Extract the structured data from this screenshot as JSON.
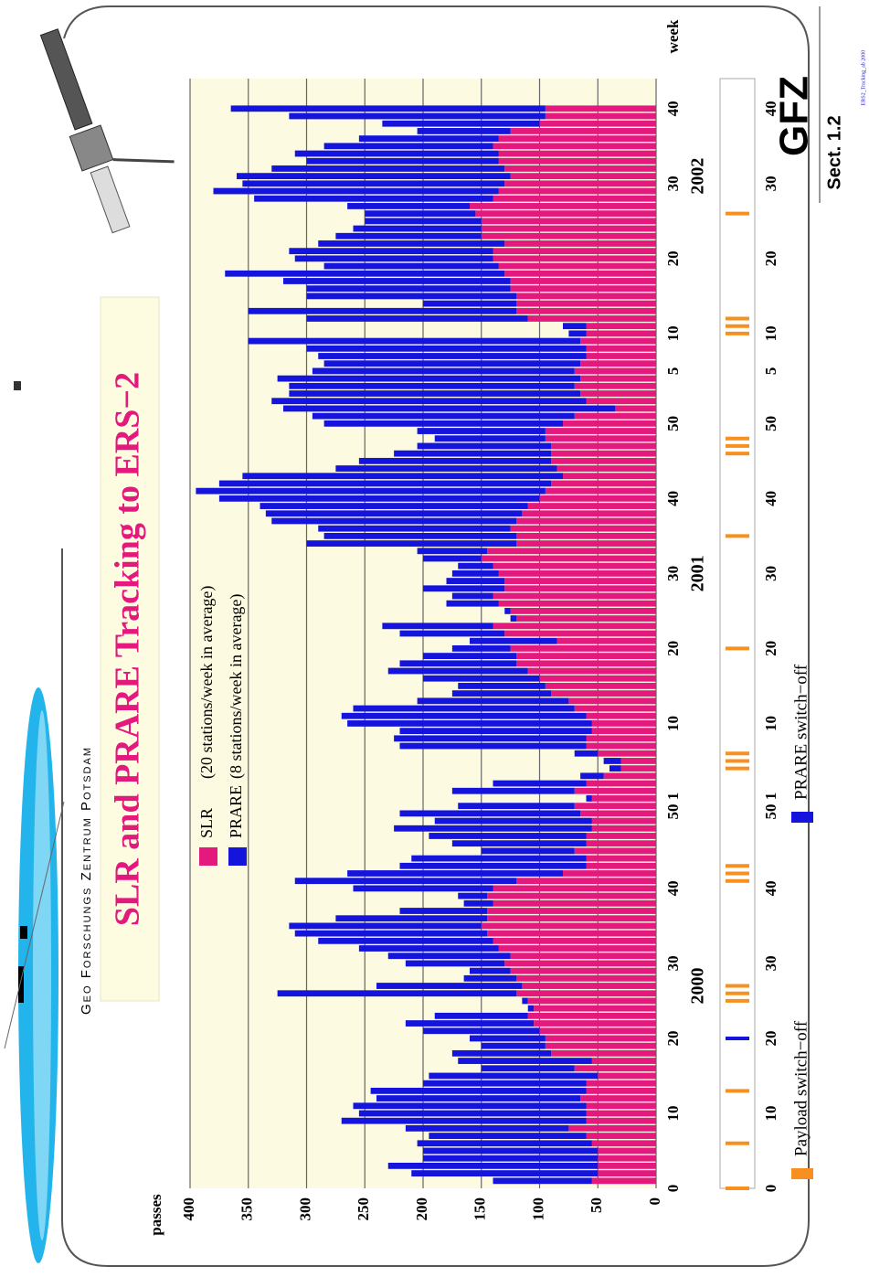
{
  "header": "Geo Forschungs Zentrum Potsdam",
  "chart_data": {
    "type": "bar",
    "stacked": true,
    "title": "SLR and PRARE Tracking to ERS−2",
    "y_label": "passes",
    "x_label": "week",
    "year_labels": [
      "2000",
      "2001",
      "2002"
    ],
    "logo": "GFZ",
    "section": "Sect. 1.2",
    "source_note": "ERS2_Tracking_ab 2000",
    "x": [
      1,
      2,
      3,
      4,
      5,
      6,
      7,
      8,
      9,
      10,
      11,
      12,
      13,
      14,
      15,
      16,
      17,
      18,
      19,
      20,
      21,
      22,
      23,
      24,
      25,
      26,
      27,
      28,
      29,
      30,
      31,
      32,
      33,
      34,
      35,
      36,
      37,
      38,
      39,
      40,
      41,
      42,
      43,
      44,
      45,
      46,
      47,
      48,
      49,
      50,
      51,
      52,
      53,
      54,
      55,
      56,
      57,
      58,
      59,
      60,
      61,
      62,
      63,
      64,
      65,
      66,
      67,
      68,
      69,
      70,
      71,
      72,
      73,
      74,
      75,
      76,
      77,
      78,
      79,
      80,
      81,
      82,
      83,
      84,
      85,
      86,
      87,
      88,
      89,
      90,
      91,
      92,
      93,
      94,
      95,
      96,
      97,
      98,
      99,
      100,
      101,
      102,
      103,
      104,
      105,
      106,
      107,
      108,
      109,
      110,
      111,
      112,
      113,
      114,
      115,
      116,
      117,
      118,
      119,
      120,
      121,
      122,
      123,
      124,
      125,
      126,
      127,
      128,
      129,
      130,
      131,
      132,
      133,
      134,
      135,
      136,
      137,
      138,
      139,
      140,
      141,
      142,
      143,
      144
    ],
    "series": [
      {
        "name": "SLR",
        "description": "(20 stations/week in average)",
        "color": "#e3197e",
        "values": [
          55,
          50,
          50,
          50,
          50,
          55,
          60,
          75,
          60,
          60,
          60,
          65,
          60,
          60,
          50,
          70,
          55,
          90,
          95,
          95,
          100,
          105,
          110,
          105,
          110,
          120,
          115,
          120,
          125,
          130,
          125,
          135,
          140,
          145,
          150,
          145,
          145,
          140,
          145,
          140,
          120,
          80,
          60,
          60,
          70,
          60,
          60,
          55,
          55,
          65,
          70,
          55,
          70,
          60,
          45,
          30,
          30,
          50,
          60,
          60,
          55,
          55,
          60,
          70,
          75,
          90,
          95,
          100,
          110,
          120,
          120,
          125,
          85,
          130,
          140,
          120,
          125,
          135,
          140,
          130,
          130,
          135,
          140,
          150,
          145,
          120,
          120,
          125,
          120,
          115,
          110,
          100,
          95,
          90,
          80,
          85,
          90,
          90,
          90,
          95,
          95,
          80,
          70,
          35,
          60,
          65,
          70,
          65,
          70,
          65,
          60,
          60,
          65,
          60,
          60,
          110,
          120,
          120,
          120,
          125,
          125,
          130,
          135,
          140,
          140,
          130,
          150,
          150,
          150,
          155,
          160,
          140,
          135,
          130,
          125,
          130,
          135,
          135,
          140,
          135,
          125,
          100,
          95,
          95
        ]
      },
      {
        "name": "PRARE",
        "description": "(8 stations/week in average)",
        "color": "#1414dc",
        "values": [
          85,
          160,
          180,
          150,
          150,
          150,
          135,
          140,
          210,
          195,
          200,
          175,
          185,
          140,
          145,
          80,
          115,
          85,
          55,
          65,
          100,
          110,
          80,
          5,
          5,
          205,
          125,
          45,
          35,
          85,
          105,
          120,
          150,
          165,
          165,
          130,
          75,
          25,
          25,
          120,
          190,
          185,
          160,
          150,
          80,
          115,
          135,
          170,
          135,
          155,
          100,
          5,
          105,
          80,
          20,
          10,
          15,
          20,
          160,
          165,
          165,
          210,
          210,
          190,
          130,
          85,
          75,
          100,
          120,
          100,
          80,
          50,
          75,
          90,
          95,
          5,
          5,
          45,
          35,
          70,
          50,
          40,
          30,
          50,
          60,
          180,
          165,
          165,
          210,
          220,
          230,
          275,
          300,
          285,
          275,
          190,
          165,
          135,
          115,
          95,
          110,
          205,
          225,
          285,
          270,
          250,
          245,
          260,
          225,
          220,
          230,
          240,
          285,
          15,
          20,
          190,
          230,
          80,
          180,
          175,
          195,
          240,
          150,
          170,
          175,
          160,
          125,
          110,
          100,
          95,
          105,
          205,
          245,
          225,
          235,
          200,
          165,
          175,
          145,
          120,
          80,
          135,
          220,
          270
        ]
      }
    ],
    "events": [
      {
        "name": "Payload switch−off",
        "color": "#f7901e",
        "x": [
          0,
          6,
          13,
          25,
          26,
          27,
          41,
          42,
          43,
          56,
          57,
          58,
          72,
          87,
          98,
          99,
          100,
          114,
          115,
          116,
          130
        ]
      },
      {
        "name": "PRARE switch−off",
        "color": "#1414dc",
        "x": [
          20
        ]
      }
    ],
    "xlim": [
      0,
      148
    ],
    "xticks": [
      0,
      10,
      20,
      30,
      40,
      {
        "value": 51,
        "label": "50 1"
      },
      {
        "value": 62,
        "label": "10"
      },
      {
        "value": 72,
        "label": "20"
      },
      {
        "value": 82,
        "label": "30"
      },
      {
        "value": 92,
        "label": "40"
      },
      {
        "value": 102,
        "label": "50"
      },
      {
        "value": 109,
        "label": "5"
      },
      {
        "value": 114,
        "label": "10"
      },
      {
        "value": 124,
        "label": "20"
      },
      {
        "value": 134,
        "label": "30"
      },
      {
        "value": 144,
        "label": "40"
      }
    ],
    "ylim": [
      0,
      400
    ],
    "yticks": [
      0,
      50,
      100,
      150,
      200,
      250,
      300,
      350,
      400
    ],
    "grid": true
  }
}
